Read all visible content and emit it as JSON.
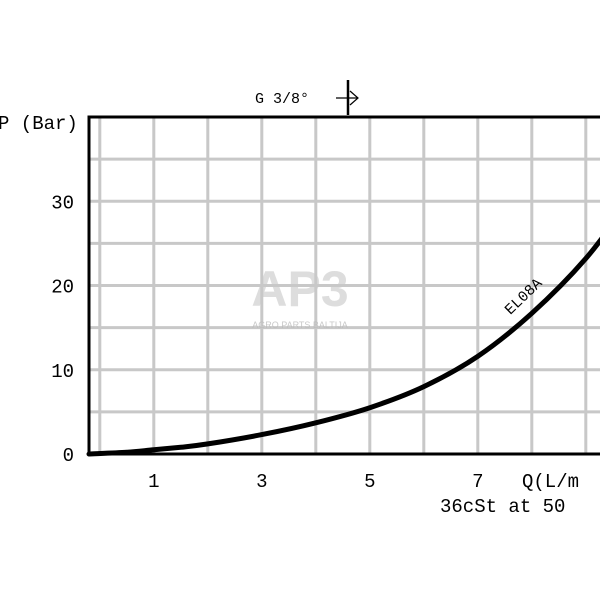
{
  "chart_data": {
    "type": "line",
    "title": "",
    "header_label": "G 3/8°",
    "ylabel": "P (Bar)",
    "xlabel": "Q(L/m",
    "note": "36cSt at 50",
    "xlim": [
      -0.2,
      9.8
    ],
    "ylim": [
      0,
      40
    ],
    "x_ticks": [
      1,
      3,
      5,
      7
    ],
    "y_ticks": [
      0,
      10,
      20,
      30
    ],
    "grid": true,
    "series": [
      {
        "name": "EL08A",
        "color": "#000000",
        "points": [
          [
            -0.2,
            0
          ],
          [
            0.5,
            0.2
          ],
          [
            1,
            0.5
          ],
          [
            1.5,
            0.8
          ],
          [
            2,
            1.2
          ],
          [
            3,
            2.3
          ],
          [
            4,
            3.7
          ],
          [
            5,
            5.5
          ],
          [
            6,
            8
          ],
          [
            7,
            11.6
          ],
          [
            8,
            16.7
          ],
          [
            9,
            23.2
          ],
          [
            9.8,
            30
          ]
        ]
      }
    ]
  },
  "watermark": {
    "logo": "AP3",
    "subtitle": "AGRO PARTS BALTIJA",
    "color": "#c8c8c8"
  }
}
